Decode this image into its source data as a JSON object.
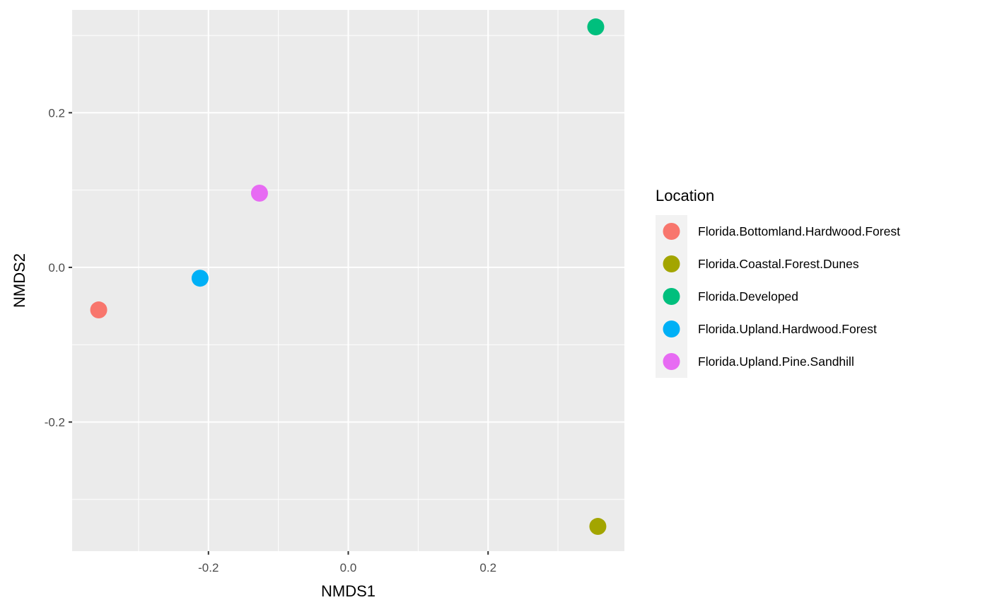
{
  "chart_data": {
    "type": "scatter",
    "title": "",
    "xlabel": "NMDS1",
    "ylabel": "NMDS2",
    "xlim": [
      -0.395,
      0.395
    ],
    "ylim": [
      -0.367,
      0.333
    ],
    "x_ticks": [
      -0.2,
      0.0,
      0.2
    ],
    "x_tick_labels": [
      "-0.2",
      "0.0",
      "0.2"
    ],
    "y_ticks": [
      0.2,
      0.0,
      -0.2
    ],
    "y_tick_labels": [
      "0.2",
      "0.0",
      "-0.2"
    ],
    "x_minor": [
      -0.3,
      -0.1,
      0.1,
      0.3
    ],
    "y_minor": [
      0.3,
      0.1,
      -0.1,
      -0.3
    ],
    "grid": true,
    "legend": {
      "title": "Location",
      "position": "right"
    },
    "series": [
      {
        "name": "Florida.Bottomland.Hardwood.Forest",
        "color": "#F8766D",
        "x": -0.357,
        "y": -0.055
      },
      {
        "name": "Florida.Coastal.Forest.Dunes",
        "color": "#A3A500",
        "x": 0.357,
        "y": -0.335
      },
      {
        "name": "Florida.Developed",
        "color": "#00BF7D",
        "x": 0.354,
        "y": 0.311
      },
      {
        "name": "Florida.Upland.Hardwood.Forest",
        "color": "#00B0F6",
        "x": -0.212,
        "y": -0.014
      },
      {
        "name": "Florida.Upland.Pine.Sandhill",
        "color": "#E76BF3",
        "x": -0.127,
        "y": 0.096
      }
    ]
  }
}
